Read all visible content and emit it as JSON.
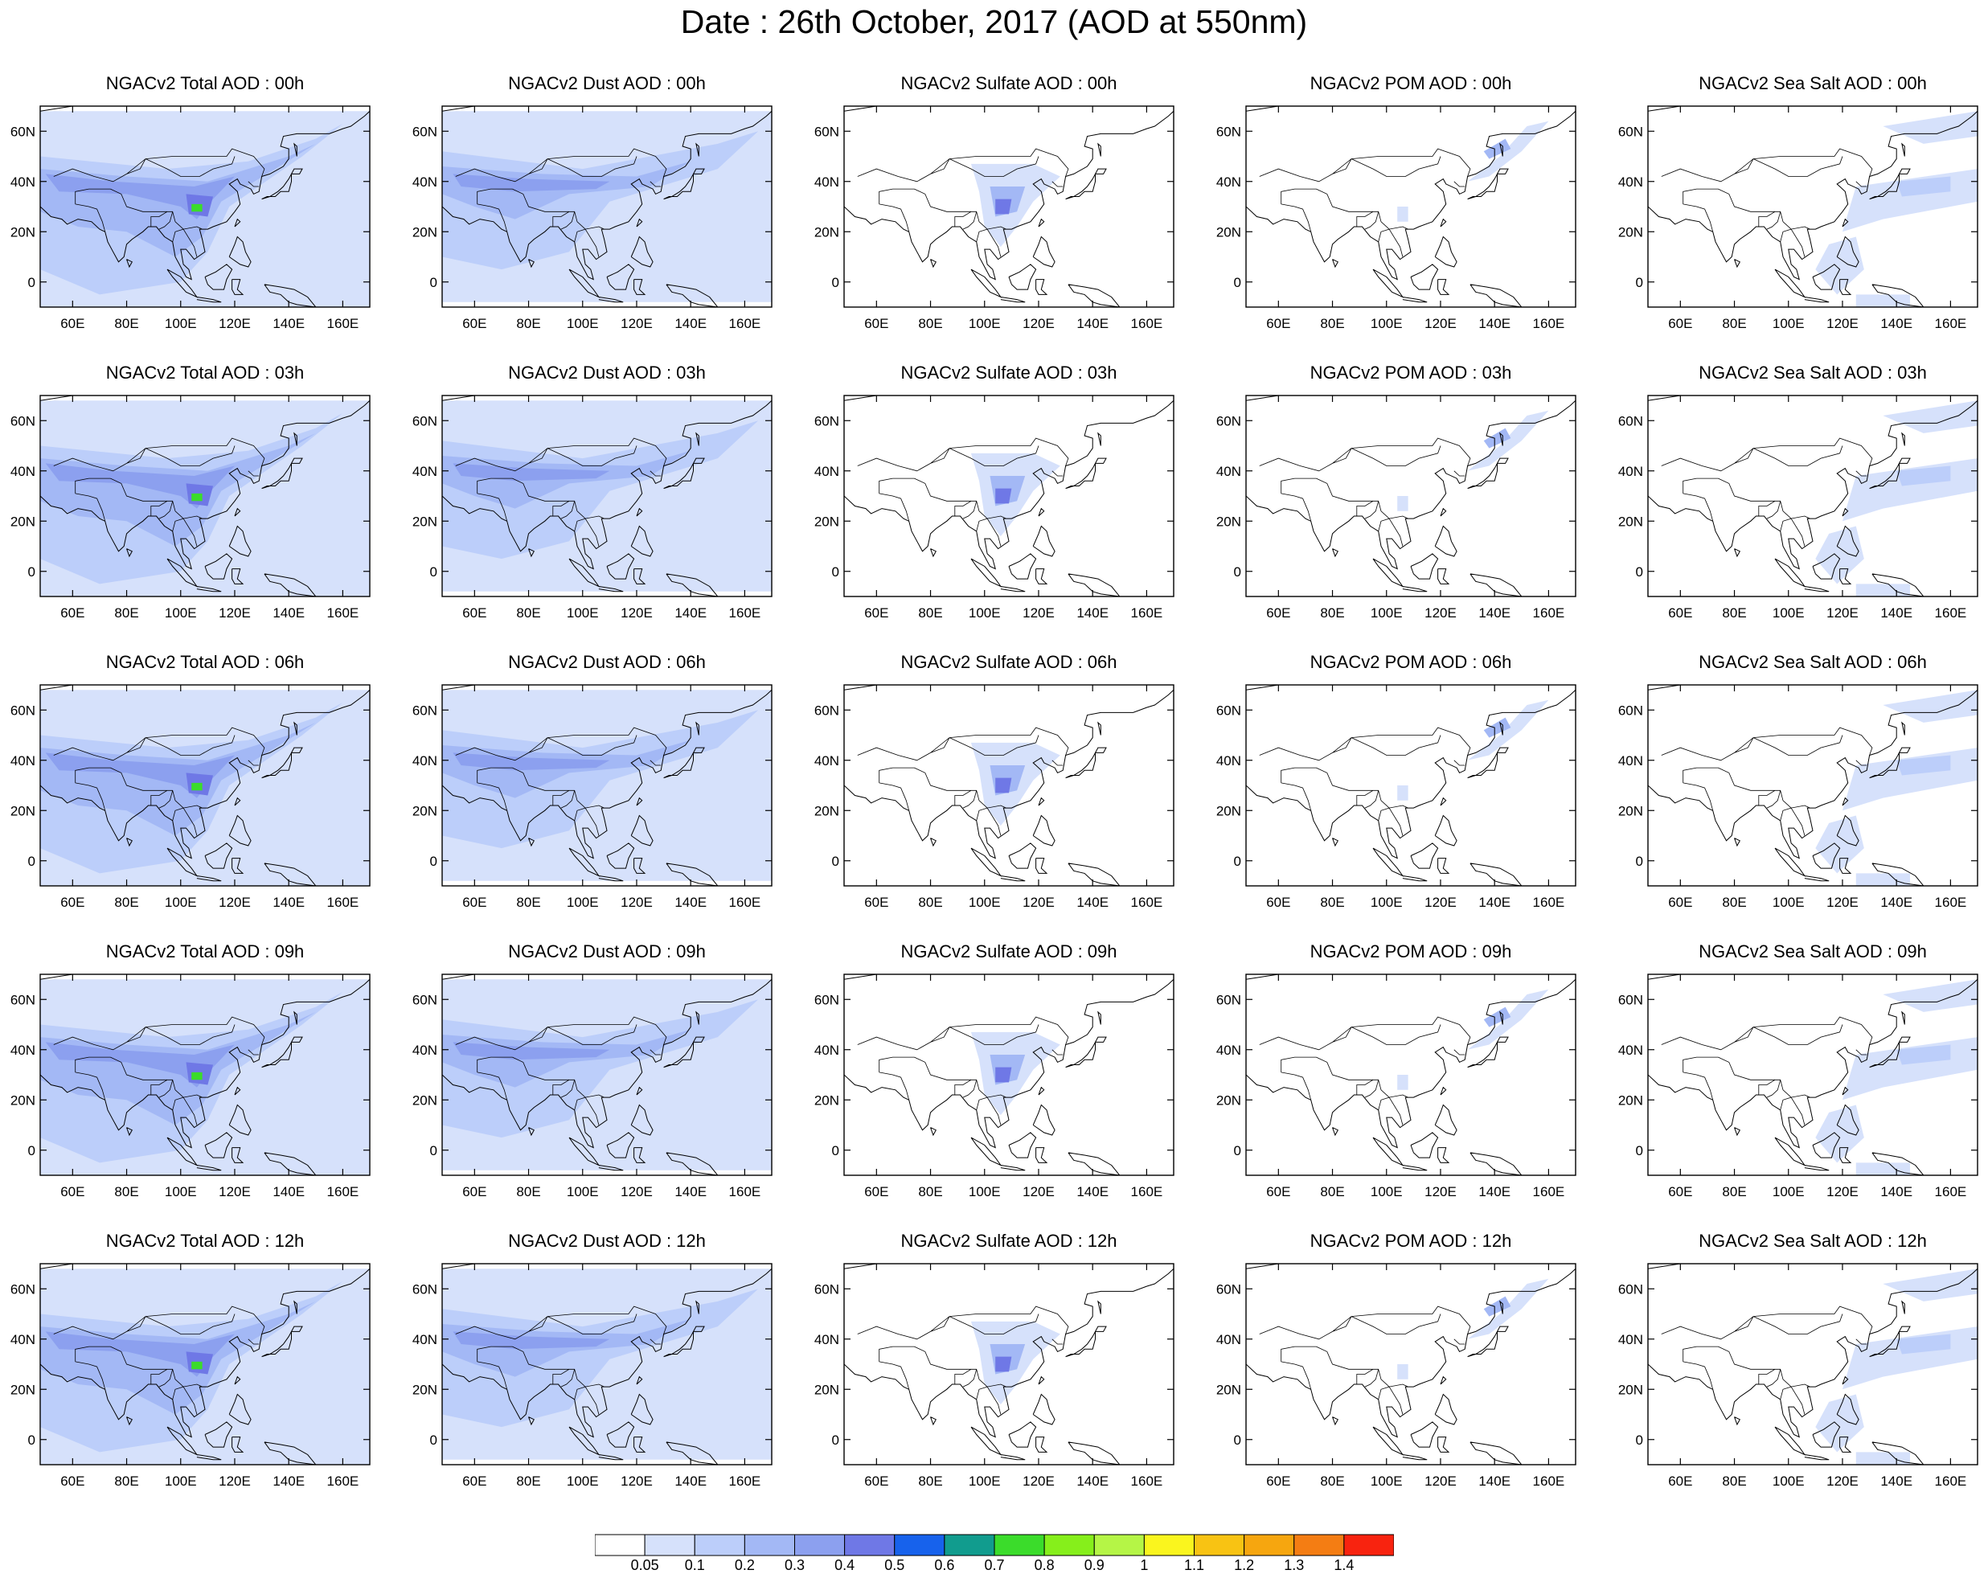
{
  "title": "Date : 26th October, 2017 (AOD at 550nm)",
  "axes": {
    "lon_ticks": [
      "60E",
      "80E",
      "100E",
      "120E",
      "140E",
      "160E"
    ],
    "lon_values": [
      60,
      80,
      100,
      120,
      140,
      160
    ],
    "lat_ticks": [
      "60N",
      "40N",
      "20N",
      "0"
    ],
    "lat_values": [
      60,
      40,
      20,
      0
    ],
    "lon_range": [
      48,
      170
    ],
    "lat_range": [
      -10,
      70
    ]
  },
  "colors": {
    "land_outline": "#000000",
    "levels": [
      "#ffffff",
      "#d6e1fb",
      "#bccefa",
      "#a3b8f5",
      "#8ca0ef",
      "#6f78e6",
      "#1762ec",
      "#119c8e",
      "#3bdc2b",
      "#86ef1b",
      "#b5f546",
      "#faf51e",
      "#f8c313",
      "#f6a60f",
      "#f47d13",
      "#f8230f"
    ]
  },
  "colorbar": {
    "labels": [
      "0.05",
      "0.1",
      "0.2",
      "0.3",
      "0.4",
      "0.5",
      "0.6",
      "0.7",
      "0.8",
      "0.9",
      "1",
      "1.1",
      "1.2",
      "1.3",
      "1.4"
    ]
  },
  "panels": [
    {
      "title": "NGACv2 Total AOD : 00h",
      "species": "total"
    },
    {
      "title": "NGACv2 Dust AOD : 00h",
      "species": "dust"
    },
    {
      "title": "NGACv2 Sulfate AOD : 00h",
      "species": "sulfate"
    },
    {
      "title": "NGACv2 POM AOD : 00h",
      "species": "pom"
    },
    {
      "title": "NGACv2 Sea Salt AOD : 00h",
      "species": "seasalt"
    },
    {
      "title": "NGACv2 Total AOD : 03h",
      "species": "total"
    },
    {
      "title": "NGACv2 Dust AOD : 03h",
      "species": "dust"
    },
    {
      "title": "NGACv2 Sulfate AOD : 03h",
      "species": "sulfate"
    },
    {
      "title": "NGACv2 POM AOD : 03h",
      "species": "pom"
    },
    {
      "title": "NGACv2 Sea Salt AOD : 03h",
      "species": "seasalt"
    },
    {
      "title": "NGACv2 Total AOD : 06h",
      "species": "total"
    },
    {
      "title": "NGACv2 Dust AOD : 06h",
      "species": "dust"
    },
    {
      "title": "NGACv2 Sulfate AOD : 06h",
      "species": "sulfate"
    },
    {
      "title": "NGACv2 POM AOD : 06h",
      "species": "pom"
    },
    {
      "title": "NGACv2 Sea Salt AOD : 06h",
      "species": "seasalt"
    },
    {
      "title": "NGACv2 Total AOD : 09h",
      "species": "total"
    },
    {
      "title": "NGACv2 Dust AOD : 09h",
      "species": "dust"
    },
    {
      "title": "NGACv2 Sulfate AOD : 09h",
      "species": "sulfate"
    },
    {
      "title": "NGACv2 POM AOD : 09h",
      "species": "pom"
    },
    {
      "title": "NGACv2 Sea Salt  AOD : 09h",
      "species": "seasalt"
    },
    {
      "title": "NGACv2 Total AOD  : 12h",
      "species": "total"
    },
    {
      "title": "NGACv2 Dust AOD : 12h",
      "species": "dust"
    },
    {
      "title": "NGACv2 Sulfate AOD : 12h",
      "species": "sulfate"
    },
    {
      "title": "NGACv2 POM  AOD : 12h",
      "species": "pom"
    },
    {
      "title": "NGACv2 Sea Salt  AOD : 12h",
      "species": "seasalt"
    }
  ]
}
